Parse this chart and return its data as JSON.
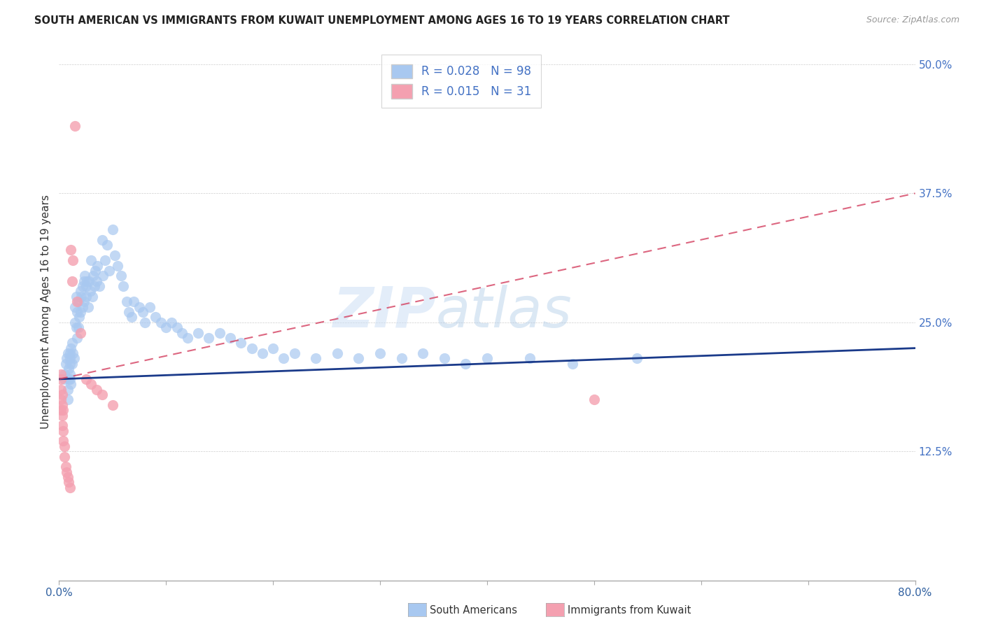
{
  "title": "SOUTH AMERICAN VS IMMIGRANTS FROM KUWAIT UNEMPLOYMENT AMONG AGES 16 TO 19 YEARS CORRELATION CHART",
  "source": "Source: ZipAtlas.com",
  "ylabel": "Unemployment Among Ages 16 to 19 years",
  "xlim": [
    0.0,
    0.8
  ],
  "ylim": [
    0.0,
    0.52
  ],
  "yticks": [
    0.0,
    0.125,
    0.25,
    0.375,
    0.5
  ],
  "ytick_labels": [
    "",
    "12.5%",
    "25.0%",
    "37.5%",
    "50.0%"
  ],
  "xticks": [
    0.0,
    0.1,
    0.2,
    0.3,
    0.4,
    0.5,
    0.6,
    0.7,
    0.8
  ],
  "xtick_labels": [
    "0.0%",
    "",
    "",
    "",
    "",
    "",
    "",
    "",
    "80.0%"
  ],
  "blue_color": "#a8c8f0",
  "pink_color": "#f4a0b0",
  "blue_line_color": "#1a3a8a",
  "pink_line_color": "#d44060",
  "watermark_zip": "ZIP",
  "watermark_atlas": "atlas",
  "legend_R1": "0.028",
  "legend_N1": "98",
  "legend_R2": "0.015",
  "legend_N2": "31",
  "blue_line_y0": 0.195,
  "blue_line_y1": 0.225,
  "pink_line_y0": 0.195,
  "pink_line_y1": 0.375,
  "sa_x": [
    0.005,
    0.005,
    0.006,
    0.007,
    0.008,
    0.008,
    0.008,
    0.009,
    0.009,
    0.01,
    0.01,
    0.01,
    0.01,
    0.01,
    0.011,
    0.011,
    0.012,
    0.012,
    0.013,
    0.014,
    0.015,
    0.015,
    0.016,
    0.016,
    0.017,
    0.017,
    0.018,
    0.018,
    0.019,
    0.02,
    0.02,
    0.021,
    0.022,
    0.022,
    0.023,
    0.023,
    0.024,
    0.025,
    0.025,
    0.026,
    0.027,
    0.028,
    0.029,
    0.03,
    0.031,
    0.032,
    0.033,
    0.034,
    0.035,
    0.036,
    0.038,
    0.04,
    0.041,
    0.043,
    0.045,
    0.047,
    0.05,
    0.052,
    0.055,
    0.058,
    0.06,
    0.063,
    0.065,
    0.068,
    0.07,
    0.075,
    0.078,
    0.08,
    0.085,
    0.09,
    0.095,
    0.1,
    0.105,
    0.11,
    0.115,
    0.12,
    0.13,
    0.14,
    0.15,
    0.16,
    0.17,
    0.18,
    0.19,
    0.2,
    0.21,
    0.22,
    0.24,
    0.26,
    0.28,
    0.3,
    0.32,
    0.34,
    0.36,
    0.38,
    0.4,
    0.44,
    0.48,
    0.54
  ],
  "sa_y": [
    0.195,
    0.2,
    0.21,
    0.215,
    0.175,
    0.185,
    0.22,
    0.195,
    0.205,
    0.2,
    0.21,
    0.215,
    0.22,
    0.195,
    0.225,
    0.19,
    0.23,
    0.21,
    0.22,
    0.215,
    0.265,
    0.25,
    0.275,
    0.245,
    0.26,
    0.235,
    0.27,
    0.245,
    0.255,
    0.28,
    0.26,
    0.275,
    0.265,
    0.285,
    0.29,
    0.27,
    0.295,
    0.285,
    0.275,
    0.29,
    0.265,
    0.29,
    0.28,
    0.31,
    0.275,
    0.295,
    0.285,
    0.3,
    0.29,
    0.305,
    0.285,
    0.33,
    0.295,
    0.31,
    0.325,
    0.3,
    0.34,
    0.315,
    0.305,
    0.295,
    0.285,
    0.27,
    0.26,
    0.255,
    0.27,
    0.265,
    0.26,
    0.25,
    0.265,
    0.255,
    0.25,
    0.245,
    0.25,
    0.245,
    0.24,
    0.235,
    0.24,
    0.235,
    0.24,
    0.235,
    0.23,
    0.225,
    0.22,
    0.225,
    0.215,
    0.22,
    0.215,
    0.22,
    0.215,
    0.22,
    0.215,
    0.22,
    0.215,
    0.21,
    0.215,
    0.215,
    0.21,
    0.215
  ],
  "kw_x": [
    0.002,
    0.002,
    0.002,
    0.002,
    0.002,
    0.003,
    0.003,
    0.003,
    0.003,
    0.004,
    0.004,
    0.004,
    0.005,
    0.005,
    0.006,
    0.007,
    0.008,
    0.009,
    0.01,
    0.011,
    0.012,
    0.013,
    0.015,
    0.017,
    0.02,
    0.025,
    0.03,
    0.035,
    0.04,
    0.05,
    0.5
  ],
  "kw_y": [
    0.2,
    0.195,
    0.185,
    0.175,
    0.165,
    0.18,
    0.17,
    0.16,
    0.15,
    0.165,
    0.145,
    0.135,
    0.13,
    0.12,
    0.11,
    0.105,
    0.1,
    0.095,
    0.09,
    0.32,
    0.29,
    0.31,
    0.44,
    0.27,
    0.24,
    0.195,
    0.19,
    0.185,
    0.18,
    0.17,
    0.175
  ]
}
